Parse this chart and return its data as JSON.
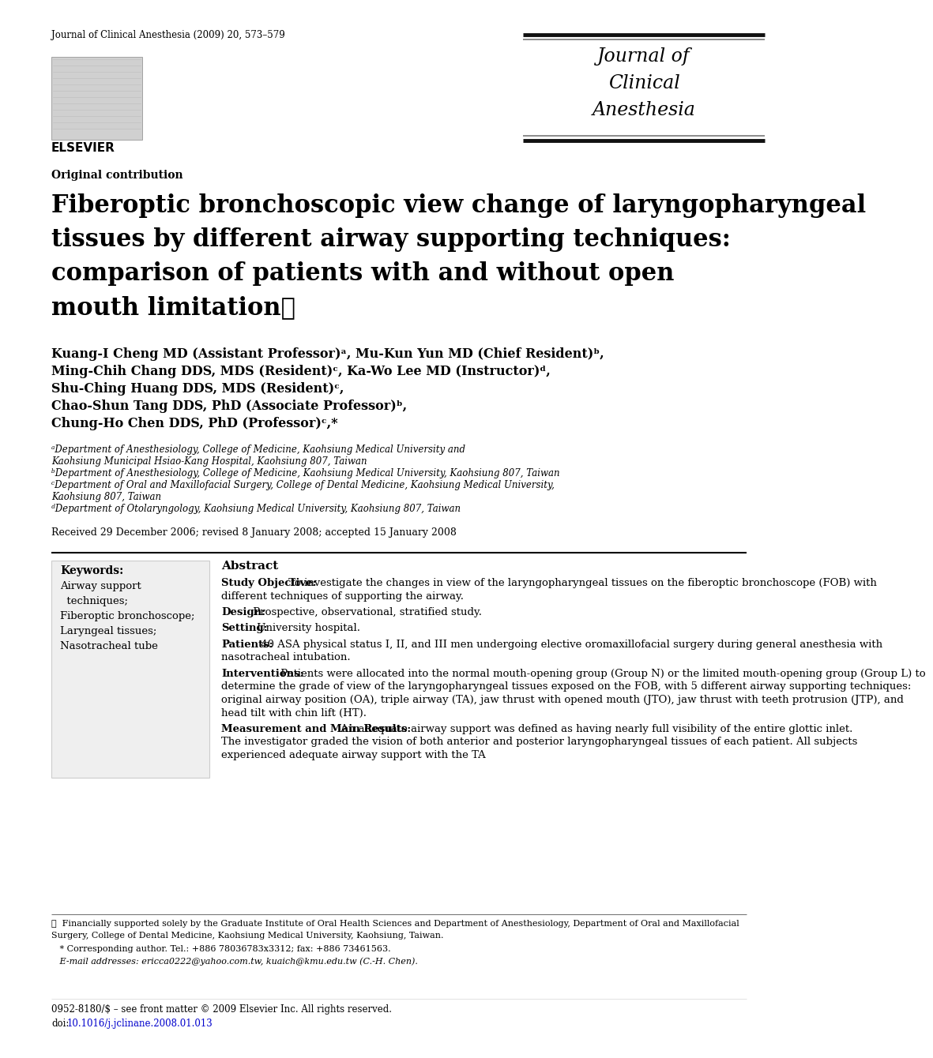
{
  "journal_ref": "Journal of Clinical Anesthesia (2009) 20, 573–579",
  "journal_name_lines": [
    "Journal of",
    "Clinical",
    "Anesthesia"
  ],
  "section_label": "Original contribution",
  "title_lines": [
    "Fiberoptic bronchoscopic view change of laryngopharyngeal",
    "tissues by different airway supporting techniques:",
    "comparison of patients with and without open",
    "mouth limitation☆"
  ],
  "authors_lines": [
    "Kuang-I Cheng MD (Assistant Professor)ᵃ, Mu-Kun Yun MD (Chief Resident)ᵇ,",
    "Ming-Chih Chang DDS, MDS (Resident)ᶜ, Ka-Wo Lee MD (Instructor)ᵈ,",
    "Shu-Ching Huang DDS, MDS (Resident)ᶜ,",
    "Chao-Shun Tang DDS, PhD (Associate Professor)ᵇ,",
    "Chung-Ho Chen DDS, PhD (Professor)ᶜ,*"
  ],
  "affiliations": [
    "ᵃDepartment of Anesthesiology, College of Medicine, Kaohsiung Medical University and",
    "Kaohsiung Municipal Hsiao-Kang Hospital, Kaohsiung 807, Taiwan",
    "ᵇDepartment of Anesthesiology, College of Medicine, Kaohsiung Medical University, Kaohsiung 807, Taiwan",
    "ᶜDepartment of Oral and Maxillofacial Surgery, College of Dental Medicine, Kaohsiung Medical University,",
    "Kaohsiung 807, Taiwan",
    "ᵈDepartment of Otolaryngology, Kaohsiung Medical University, Kaohsiung 807, Taiwan"
  ],
  "received_line": "Received 29 December 2006; revised 8 January 2008; accepted 15 January 2008",
  "keywords_title": "Keywords:",
  "keywords": [
    "Airway support",
    "  techniques;",
    "Fiberoptic bronchoscope;",
    "Laryngeal tissues;",
    "Nasotracheal tube"
  ],
  "abstract_title": "Abstract",
  "abstract_sections": [
    {
      "label": "Study Objective:",
      "text": " To investigate the changes in view of the laryngopharyngeal tissues on the fiberoptic bronchoscope (FOB) with different techniques of supporting the airway."
    },
    {
      "label": "Design:",
      "text": " Prospective, observational, stratified study."
    },
    {
      "label": "Setting:",
      "text": " University hospital."
    },
    {
      "label": "Patients:",
      "text": " 40 ASA physical status I, II, and III men undergoing elective oromaxillofacial surgery during general anesthesia with nasotracheal intubation."
    },
    {
      "label": "Interventions:",
      "text": " Patients were allocated into the normal mouth-opening group (Group N) or the limited mouth-opening group (Group L) to determine the grade of view of the laryngopharyngeal tissues exposed on the FOB, with 5 different airway supporting techniques: original airway position (OA), triple airway (TA), jaw thrust with opened mouth (JTO), jaw thrust with teeth protrusion (JTP), and head tilt with chin lift (HT)."
    },
    {
      "label": "Measurement and Main Results:",
      "text": " An adequate airway support was defined as having nearly full visibility of the entire glottic inlet. The investigator graded the vision of both anterior and posterior laryngopharyngeal tissues of each patient. All subjects experienced adequate airway support with the TA"
    }
  ],
  "footnote_star": "☆  Financially supported solely by the Graduate Institute of Oral Health Sciences and Department of Anesthesiology, Department of Oral and Maxillofacial",
  "footnote_star2": "Surgery, College of Dental Medicine, Kaohsiung Medical University, Kaohsiung, Taiwan.",
  "footnote_corresponding": "   * Corresponding author. Tel.: +886 78036783x3312; fax: +886 73461563.",
  "footnote_email": "   E-mail addresses: ericca0222@yahoo.com.tw, kuaich@kmu.edu.tw (C.-H. Chen).",
  "bottom_line1": "0952-8180/$ – see front matter © 2009 Elsevier Inc. All rights reserved.",
  "bottom_line2": "doi:10.1016/j.jclinane.2008.01.013",
  "doi_colored": "10.1016/j.jclinane.2008.01.013",
  "bg_color": "#ffffff",
  "text_color": "#000000",
  "link_color": "#0000cc"
}
